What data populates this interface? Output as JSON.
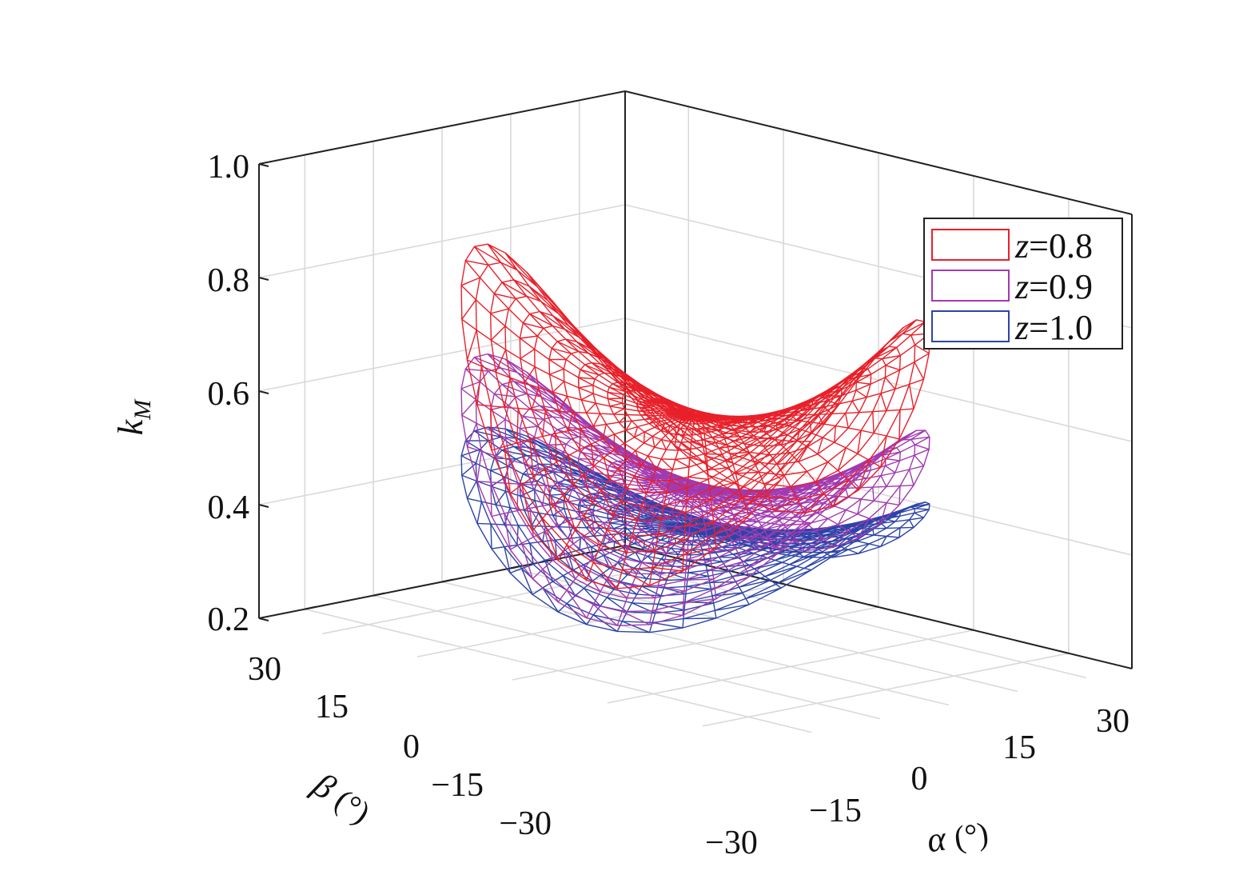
{
  "chart_data": {
    "type": "mesh3d",
    "title": "",
    "zlabel_main": "k",
    "zlabel_sub": "M",
    "xlabel_symbol": "α",
    "xlabel_unit": "(°)",
    "ylabel_symbol": "β",
    "ylabel_unit": "(°)",
    "x_ticks": [
      "−30",
      "−15",
      "0",
      "15",
      "30"
    ],
    "x_tick_values": [
      -30,
      -15,
      0,
      15,
      30
    ],
    "y_ticks": [
      "30",
      "15",
      "0",
      "−15",
      "−30"
    ],
    "y_tick_values": [
      30,
      15,
      0,
      -15,
      -30
    ],
    "z_ticks": [
      "1.0",
      "0.8",
      "0.6",
      "0.4",
      "0.2"
    ],
    "z_tick_values": [
      1.0,
      0.8,
      0.6,
      0.4,
      0.2
    ],
    "xlim": [
      -40,
      40
    ],
    "ylim": [
      -40,
      40
    ],
    "zlim": [
      0.2,
      1.0
    ],
    "grid": true,
    "legend_position": "top-right",
    "series": [
      {
        "name": "z=0.8",
        "var": "z",
        "eq": "=",
        "value": "0.8",
        "color": "#e8202a",
        "center_k": 0.6,
        "amplitude_k": 0.235
      },
      {
        "name": "z=0.9",
        "var": "z",
        "eq": "=",
        "value": "0.9",
        "color": "#a13ab0",
        "center_k": 0.47,
        "amplitude_k": 0.17
      },
      {
        "name": "z=1.0",
        "var": "z",
        "eq": "=",
        "value": "1.0",
        "color": "#2c44a8",
        "center_k": 0.4,
        "amplitude_k": 0.11
      }
    ]
  }
}
